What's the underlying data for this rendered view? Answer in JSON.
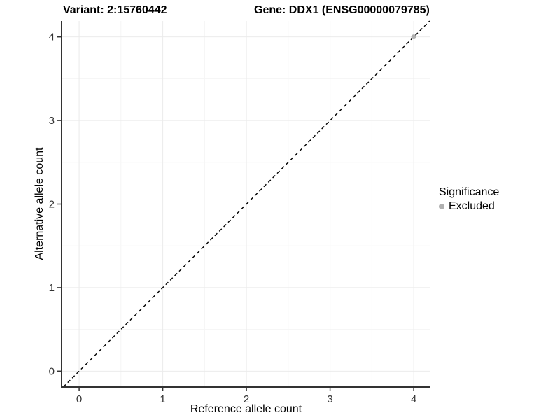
{
  "chart_data": {
    "type": "scatter",
    "title_left": "Variant: 2:15760442",
    "title_right": "Gene: DDX1 (ENSG00000079785)",
    "xlabel": "Reference allele count",
    "ylabel": "Alternative allele count",
    "xticks": [
      0,
      1,
      2,
      3,
      4
    ],
    "yticks": [
      0,
      1,
      2,
      3,
      4
    ],
    "xlim": [
      -0.21,
      4.2
    ],
    "ylim": [
      -0.19,
      4.19
    ],
    "grid": {
      "major_color": "#ebebeb",
      "minor_color": "#f5f5f5",
      "minor_at_halves": true
    },
    "axis_color": "#333333",
    "tick_label_color": "#333333",
    "reference_line": {
      "kind": "abline",
      "slope": 1,
      "intercept": 0,
      "style": "dashed",
      "color": "#000000"
    },
    "series": [
      {
        "name": "Excluded",
        "color": "#b0b0b0",
        "points": [
          {
            "x": 4,
            "y": 4
          }
        ]
      }
    ],
    "legend": {
      "title": "Significance",
      "position": "right",
      "items": [
        {
          "label": "Excluded",
          "color": "#b0b0b0"
        }
      ]
    }
  }
}
